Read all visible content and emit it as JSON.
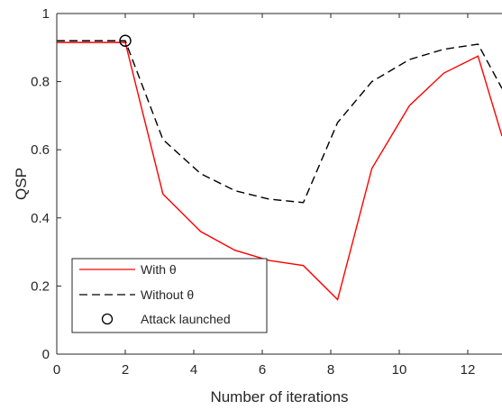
{
  "chart_data": {
    "type": "line",
    "xlabel": "Number of iterations",
    "ylabel": "QSP",
    "xlim": [
      0,
      13
    ],
    "ylim": [
      0,
      1
    ],
    "xticks": [
      0,
      2,
      4,
      6,
      8,
      10,
      12
    ],
    "yticks": [
      0,
      0.2,
      0.4,
      0.6,
      0.8,
      1
    ],
    "grid": false,
    "legend_location": "bottom-left",
    "series": [
      {
        "name": "With θ",
        "name_math": "θ",
        "color": "#ff0000",
        "style": "solid",
        "x": [
          0,
          2,
          3.1,
          4.2,
          5.2,
          6.2,
          7.2,
          8.2,
          9.2,
          10.3,
          11.3,
          12.3,
          13
        ],
        "y": [
          0.915,
          0.915,
          0.47,
          0.36,
          0.305,
          0.275,
          0.26,
          0.16,
          0.545,
          0.73,
          0.825,
          0.875,
          0.64
        ]
      },
      {
        "name": "Without θ",
        "name_math": "θ",
        "color": "#000000",
        "style": "dashed",
        "x": [
          0,
          2,
          3.1,
          4.2,
          5.2,
          6.2,
          7.2,
          8.2,
          9.2,
          10.3,
          11.3,
          12.3,
          13
        ],
        "y": [
          0.92,
          0.92,
          0.63,
          0.53,
          0.48,
          0.455,
          0.445,
          0.68,
          0.8,
          0.865,
          0.895,
          0.91,
          0.78
        ]
      },
      {
        "name": "Attack launched",
        "color": "#000000",
        "style": "marker-circle",
        "x": [
          2
        ],
        "y": [
          0.92
        ]
      }
    ]
  }
}
